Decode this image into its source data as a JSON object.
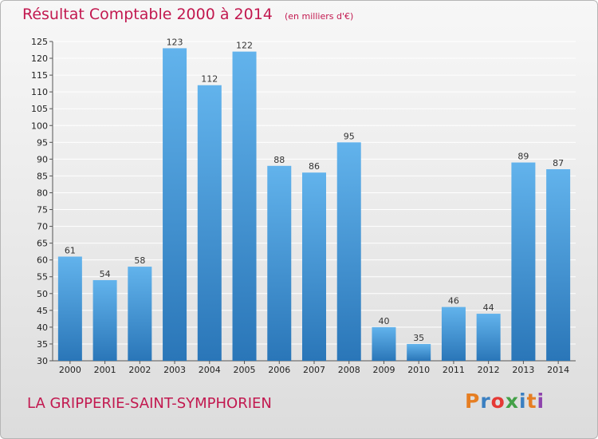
{
  "header": {
    "title": "Résultat Comptable 2000 à 2014",
    "unit": "(en milliers d'€)"
  },
  "footer": {
    "commune": "LA GRIPPERIE-SAINT-SYMPHORIEN",
    "logo": "Proxiti"
  },
  "colors": {
    "title": "#c2184f",
    "bar_light": "#62b3ec",
    "bar_dark": "#2a76b8",
    "grid": "#ffffff",
    "logo_letters": [
      "#e67e22",
      "#3a7fc1",
      "#e53935",
      "#43a047",
      "#3a7fc1",
      "#e67e22",
      "#8e44ad"
    ]
  },
  "chart_data": {
    "type": "bar",
    "title": "Résultat Comptable 2000 à 2014",
    "subtitle": "(en milliers d'€)",
    "xlabel": "",
    "ylabel": "",
    "categories": [
      "2000",
      "2001",
      "2002",
      "2003",
      "2004",
      "2005",
      "2006",
      "2007",
      "2008",
      "2009",
      "2010",
      "2011",
      "2012",
      "2013",
      "2014"
    ],
    "values": [
      61,
      54,
      58,
      123,
      112,
      122,
      88,
      86,
      95,
      40,
      35,
      46,
      44,
      89,
      87
    ],
    "data_labels": [
      "61",
      "54",
      "58",
      "123",
      "112",
      "122",
      "88",
      "86",
      "95",
      "40",
      "35",
      "46",
      "44",
      "89",
      "87"
    ],
    "ylim": [
      30,
      125
    ],
    "yticks": [
      30,
      35,
      40,
      45,
      50,
      55,
      60,
      65,
      70,
      75,
      80,
      85,
      90,
      95,
      100,
      105,
      110,
      115,
      120,
      125
    ],
    "grid": true,
    "legend": "none"
  }
}
